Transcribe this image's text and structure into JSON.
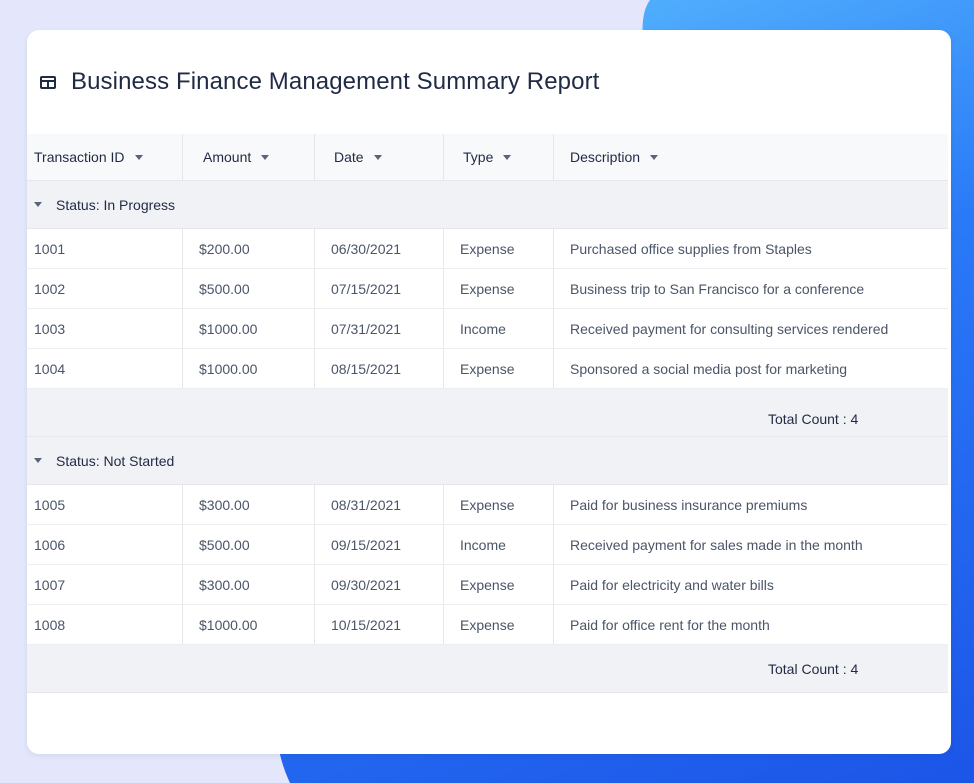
{
  "report": {
    "title": "Business Finance Management Summary Report",
    "icon": "table-icon"
  },
  "columns": [
    {
      "label": "Transaction ID"
    },
    {
      "label": "Amount"
    },
    {
      "label": "Date"
    },
    {
      "label": "Type"
    },
    {
      "label": "Description"
    }
  ],
  "groups": [
    {
      "label": "Status: In Progress",
      "rows": [
        {
          "id": "1001",
          "amount": "$200.00",
          "date": "06/30/2021",
          "type": "Expense",
          "description": "Purchased office supplies from Staples"
        },
        {
          "id": "1002",
          "amount": "$500.00",
          "date": "07/15/2021",
          "type": "Expense",
          "description": "Business trip to San Francisco for a conference"
        },
        {
          "id": "1003",
          "amount": "$1000.00",
          "date": "07/31/2021",
          "type": "Income",
          "description": "Received payment for consulting services rendered"
        },
        {
          "id": "1004",
          "amount": "$1000.00",
          "date": "08/15/2021",
          "type": "Expense",
          "description": "Sponsored a social media post for marketing"
        }
      ],
      "total": "Total Count : 4"
    },
    {
      "label": "Status: Not Started",
      "rows": [
        {
          "id": "1005",
          "amount": "$300.00",
          "date": "08/31/2021",
          "type": "Expense",
          "description": "Paid for business insurance premiums"
        },
        {
          "id": "1006",
          "amount": "$500.00",
          "date": "09/15/2021",
          "type": "Income",
          "description": "Received payment for sales made in the month"
        },
        {
          "id": "1007",
          "amount": "$300.00",
          "date": "09/30/2021",
          "type": "Expense",
          "description": "Paid for electricity and water bills"
        },
        {
          "id": "1008",
          "amount": "$1000.00",
          "date": "10/15/2021",
          "type": "Expense",
          "description": "Paid for office rent for the month"
        }
      ],
      "total": "Total Count : 4"
    }
  ]
}
